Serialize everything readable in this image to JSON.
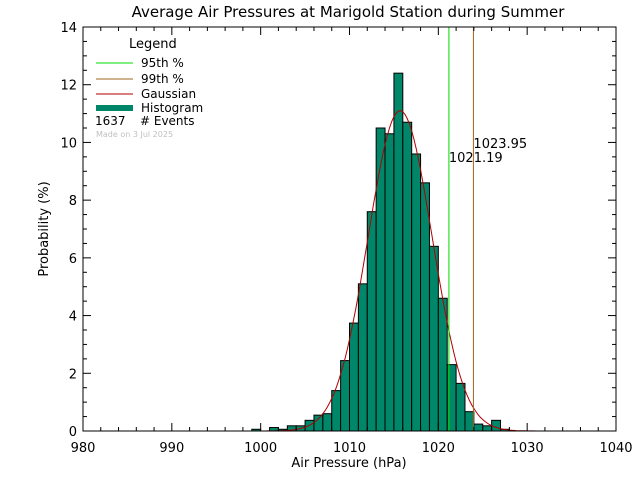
{
  "colors": {
    "histogram": "#00876a",
    "gaussian": "#b00000",
    "p95": "#00dd00",
    "p99": "#a0651e",
    "axis": "#000000"
  },
  "chart_data": {
    "type": "bar",
    "title": "Average Air Pressures at Marigold Station during Summer",
    "xlabel": "Air Pressure (hPa)",
    "ylabel": "Probability (%)",
    "xlim": [
      980,
      1040
    ],
    "ylim": [
      0,
      14
    ],
    "x_ticks": [
      "980",
      "990",
      "1000",
      "1010",
      "1020",
      "1030",
      "1040"
    ],
    "y_ticks": [
      "0",
      "2",
      "4",
      "6",
      "8",
      "10",
      "12",
      "14"
    ],
    "grid": false,
    "legend_position": "top-left",
    "legend": {
      "title": "Legend",
      "entries": [
        "95th %",
        "99th %",
        "Gaussian",
        "Histogram"
      ],
      "events_count": "1637",
      "events_label": "# Events",
      "made_on": "Made on 3 Jul 2025"
    },
    "bin_width": 1,
    "bins": [
      {
        "x": 999.5,
        "y": 0.06
      },
      {
        "x": 1001.5,
        "y": 0.12
      },
      {
        "x": 1002.5,
        "y": 0.06
      },
      {
        "x": 1003.5,
        "y": 0.18
      },
      {
        "x": 1004.5,
        "y": 0.18
      },
      {
        "x": 1005.5,
        "y": 0.37
      },
      {
        "x": 1006.5,
        "y": 0.55
      },
      {
        "x": 1007.5,
        "y": 0.6
      },
      {
        "x": 1008.5,
        "y": 1.4
      },
      {
        "x": 1009.5,
        "y": 2.44
      },
      {
        "x": 1010.5,
        "y": 3.74
      },
      {
        "x": 1011.5,
        "y": 5.1
      },
      {
        "x": 1012.5,
        "y": 7.6
      },
      {
        "x": 1013.5,
        "y": 10.5
      },
      {
        "x": 1014.5,
        "y": 10.3
      },
      {
        "x": 1015.5,
        "y": 12.4
      },
      {
        "x": 1016.5,
        "y": 10.7
      },
      {
        "x": 1017.5,
        "y": 9.6
      },
      {
        "x": 1018.5,
        "y": 8.6
      },
      {
        "x": 1019.5,
        "y": 6.4
      },
      {
        "x": 1020.5,
        "y": 4.6
      },
      {
        "x": 1021.5,
        "y": 2.3
      },
      {
        "x": 1022.5,
        "y": 1.65
      },
      {
        "x": 1023.5,
        "y": 0.67
      },
      {
        "x": 1024.5,
        "y": 0.24
      },
      {
        "x": 1025.5,
        "y": 0.18
      },
      {
        "x": 1026.5,
        "y": 0.37
      },
      {
        "x": 1027.5,
        "y": 0.06
      }
    ],
    "gaussian": {
      "mean": 1015.7,
      "sigma": 3.6,
      "peak": 11.1
    },
    "percentiles": [
      {
        "name": "95th %",
        "value": 1021.19,
        "label": "1021.19"
      },
      {
        "name": "99th %",
        "value": 1023.95,
        "label": "1023.95"
      }
    ]
  }
}
